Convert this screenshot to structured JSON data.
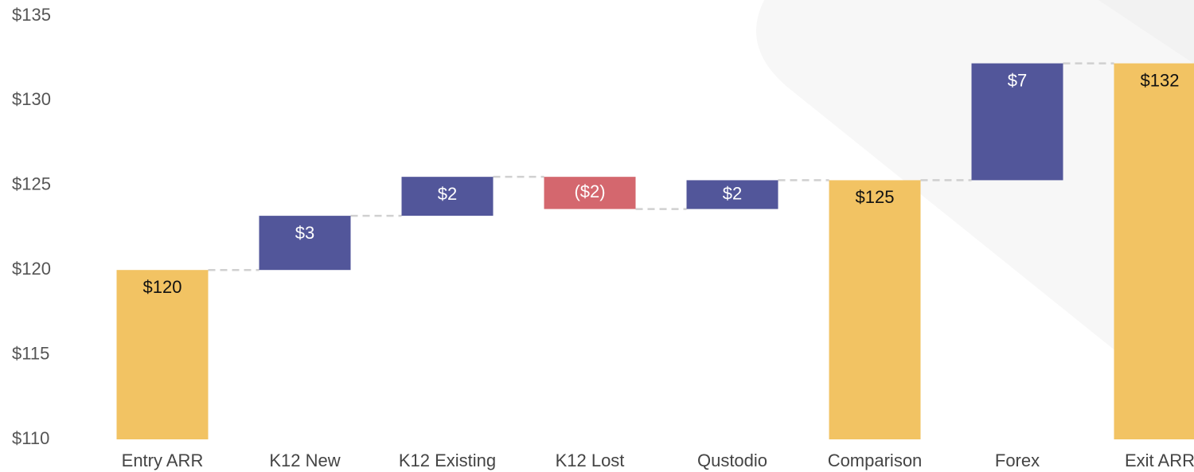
{
  "chart_data": {
    "type": "waterfall",
    "categories": [
      "Entry ARR",
      "K12 New",
      "K12 Existing",
      "K12 Lost",
      "Qustodio",
      "Comparison",
      "Forex",
      "Exit ARR"
    ],
    "measures": [
      "absolute",
      "relative",
      "relative",
      "relative",
      "relative",
      "absolute",
      "relative",
      "absolute"
    ],
    "values": [
      120,
      3.2,
      2.3,
      -1.9,
      1.7,
      125.3,
      6.9,
      132.2
    ],
    "value_labels": [
      "$120",
      "$3",
      "$2",
      "($2)",
      "$2",
      "$125",
      "$7",
      "$132"
    ],
    "colors": {
      "increase": "#52569a",
      "decrease": "#d4676e",
      "total": "#f2c363"
    },
    "ylim": [
      110,
      135
    ],
    "yticks": [
      {
        "value": 110,
        "label": "$110"
      },
      {
        "value": 115,
        "label": "$115"
      },
      {
        "value": 120,
        "label": "$120"
      },
      {
        "value": 125,
        "label": "$125"
      },
      {
        "value": 130,
        "label": "$130"
      },
      {
        "value": 135,
        "label": "$135"
      }
    ],
    "grid": false
  }
}
